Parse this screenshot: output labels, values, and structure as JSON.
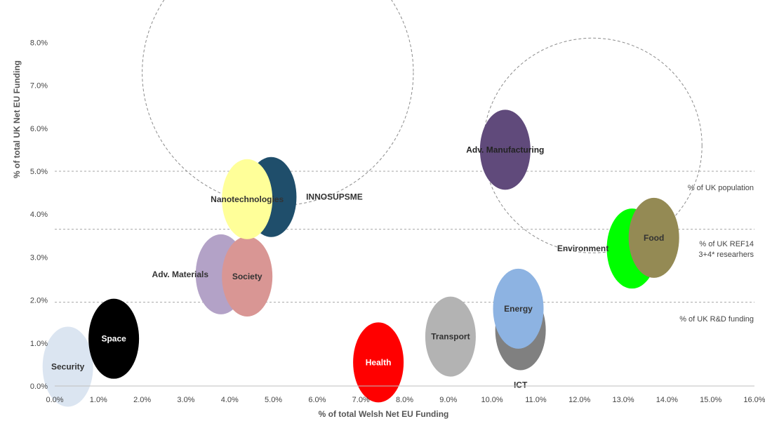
{
  "chart_data": {
    "type": "scatter",
    "xlabel": "% of total Welsh Net EU Funding",
    "ylabel": "% of total UK Net EU Funding",
    "xlim": [
      0,
      16
    ],
    "ylim": [
      0,
      9
    ],
    "x_ticks": [
      "0.0%",
      "1.0%",
      "2.0%",
      "3.0%",
      "4.0%",
      "5.0%",
      "6.0%",
      "7.0%",
      "8.0%",
      "9.0%",
      "10.0%",
      "11.0%",
      "12.0%",
      "13.0%",
      "14.0%",
      "15.0%",
      "16.0%"
    ],
    "y_ticks": [
      "0.0%",
      "1.0%",
      "2.0%",
      "3.0%",
      "4.0%",
      "5.0%",
      "6.0%",
      "7.0%",
      "8.0%"
    ],
    "reference_lines": [
      {
        "y": 5.0,
        "label": "% of UK population"
      },
      {
        "y": 3.65,
        "label": "% of UK REF14 3+4* researhers"
      },
      {
        "y": 1.95,
        "label": "% of UK R&D funding"
      }
    ],
    "highlight_circles": [
      {
        "x": 5.1,
        "y": 7.3,
        "r": 3.1
      },
      {
        "x": 12.3,
        "y": 5.6,
        "r": 2.5
      }
    ],
    "points": [
      {
        "name": "Security",
        "x": 0.3,
        "y": 0.45,
        "color": "#dbe5f1",
        "label_color": "#333333"
      },
      {
        "name": "Space",
        "x": 1.35,
        "y": 1.1,
        "color": "#000000",
        "label_color": "#ffffff"
      },
      {
        "name": "Adv. Materials",
        "x": 3.8,
        "y": 2.6,
        "color": "#b3a2c7",
        "label_color": "#333333"
      },
      {
        "name": "Society",
        "x": 4.4,
        "y": 2.55,
        "color": "#d99694",
        "label_color": "#333333"
      },
      {
        "name": "INNOSUPSME",
        "x": 4.95,
        "y": 4.4,
        "color": "#1f4e6b",
        "label_color": "#333333"
      },
      {
        "name": "Nanotechnologies",
        "x": 4.4,
        "y": 4.35,
        "color": "#ffff99",
        "label_color": "#333333"
      },
      {
        "name": "Health",
        "x": 7.4,
        "y": 0.55,
        "color": "#ff0000",
        "label_color": "#ffffff"
      },
      {
        "name": "Transport",
        "x": 9.05,
        "y": 1.15,
        "color": "#b3b3b3",
        "label_color": "#333333"
      },
      {
        "name": "ICT",
        "x": 10.65,
        "y": 1.3,
        "color": "#808080",
        "label_color": "#333333"
      },
      {
        "name": "Energy",
        "x": 10.6,
        "y": 1.8,
        "color": "#8db3e2",
        "label_color": "#333333"
      },
      {
        "name": "Adv. Manufacturing",
        "x": 10.3,
        "y": 5.5,
        "color": "#604a7b",
        "label_color": "#222222"
      },
      {
        "name": "Environment",
        "x": 13.2,
        "y": 3.2,
        "color": "#00ff00",
        "label_color": "#333333"
      },
      {
        "name": "Food",
        "x": 13.7,
        "y": 3.45,
        "color": "#948a54",
        "label_color": "#333333"
      }
    ]
  }
}
